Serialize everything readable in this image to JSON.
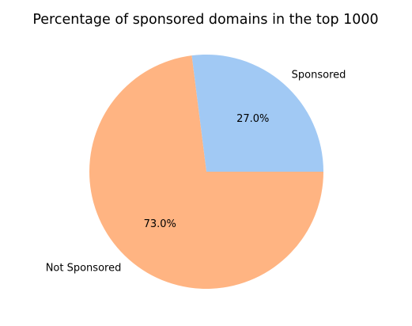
{
  "chart_data": {
    "type": "pie",
    "title": "Percentage of sponsored domains in the top 1000",
    "slices": [
      {
        "label": "Sponsored",
        "value": 27.0,
        "pct_label": "27.0%",
        "color": "#a1c9f4"
      },
      {
        "label": "Not Sponsored",
        "value": 73.0,
        "pct_label": "73.0%",
        "color": "#ffb482"
      }
    ],
    "start_angle_deg": 0,
    "direction": "counterclockwise"
  }
}
